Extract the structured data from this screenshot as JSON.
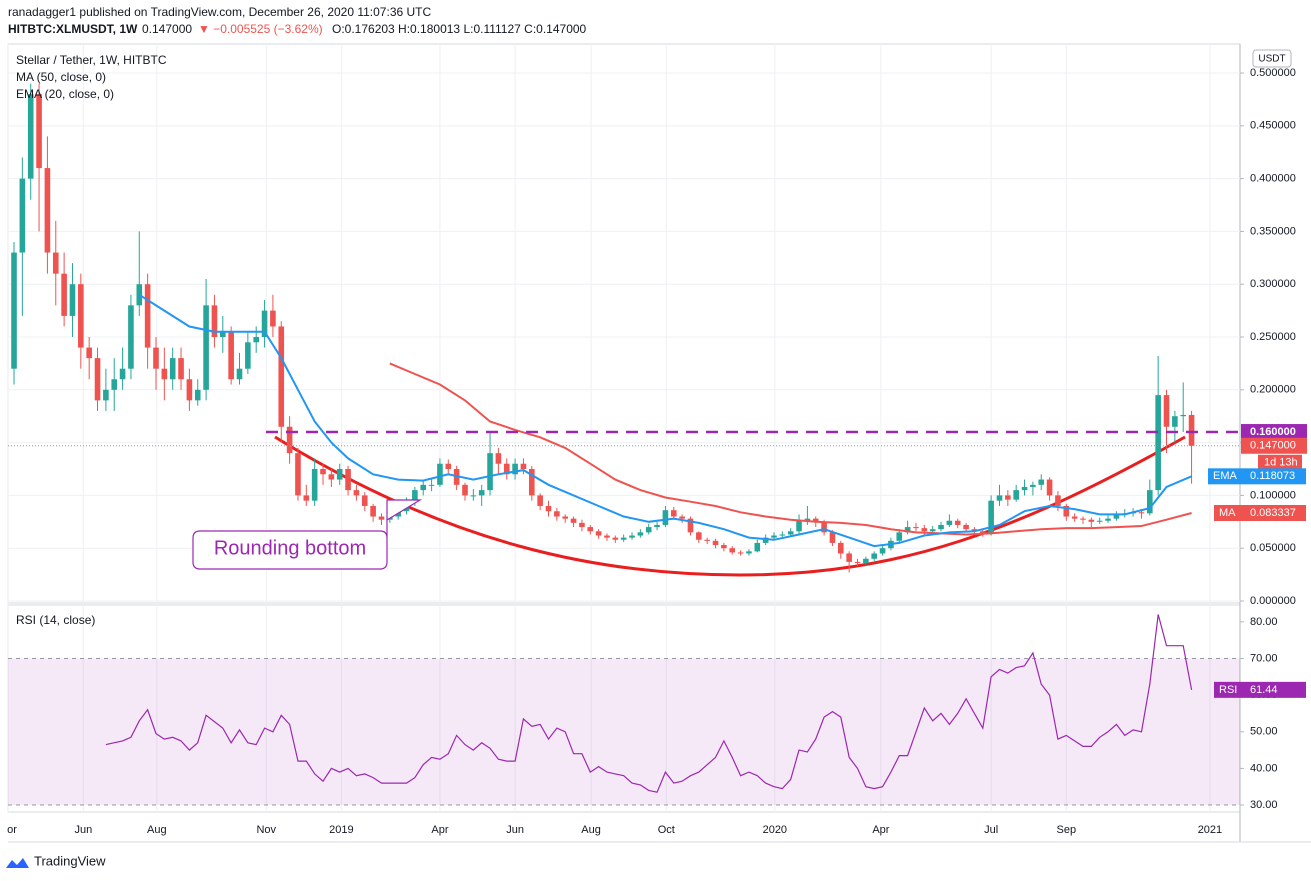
{
  "header": {
    "published": "ranadagger1 published on TradingView.com, December 26, 2020 11:07:36 UTC",
    "symbol": "HITBTC:XLMUSDT, 1W",
    "price": "0.147000",
    "change": "▼ −0.005525 (−3.62%)",
    "ohlc": "O:0.176203 H:0.180013 L:0.111127 C:0.147000"
  },
  "chart_data": {
    "type": "candlestick",
    "title": "Stellar / Tether, 1W, HITBTC",
    "currency": "USDT",
    "up_color": "#26a69a",
    "down_color": "#ef5350",
    "grid": true,
    "xlim": [
      -0.72,
      146.8
    ],
    "xticks": [
      {
        "value": -0.7,
        "label": "or"
      },
      {
        "value": 8.3,
        "label": "Jun"
      },
      {
        "value": 17.1,
        "label": "Aug"
      },
      {
        "value": 30.2,
        "label": "Nov"
      },
      {
        "value": 39.2,
        "label": "2019"
      },
      {
        "value": 51.0,
        "label": "Apr"
      },
      {
        "value": 60.0,
        "label": "Jun"
      },
      {
        "value": 69.1,
        "label": "Aug"
      },
      {
        "value": 78.1,
        "label": "Oct"
      },
      {
        "value": 91.1,
        "label": "2020"
      },
      {
        "value": 103.8,
        "label": "Apr"
      },
      {
        "value": 117.0,
        "label": "Jul"
      },
      {
        "value": 126.0,
        "label": "Sep"
      },
      {
        "value": 143.2,
        "label": "2021"
      }
    ],
    "ylim": [
      -0.0019,
      0.5275
    ],
    "yticks": [
      {
        "value": 0,
        "label": "0.000000"
      },
      {
        "value": 0.05,
        "label": "0.050000"
      },
      {
        "value": 0.1,
        "label": "0.100000"
      },
      {
        "value": 0.15,
        "label": "0.150000"
      },
      {
        "value": 0.2,
        "label": "0.200000"
      },
      {
        "value": 0.25,
        "label": "0.250000"
      },
      {
        "value": 0.3,
        "label": "0.300000"
      },
      {
        "value": 0.35,
        "label": "0.350000"
      },
      {
        "value": 0.4,
        "label": "0.400000"
      },
      {
        "value": 0.45,
        "label": "0.450000"
      },
      {
        "value": 0.5,
        "label": "0.500000"
      }
    ],
    "candles": [
      [
        0.22,
        0.34,
        0.205,
        0.33
      ],
      [
        0.33,
        0.42,
        0.27,
        0.4
      ],
      [
        0.4,
        0.49,
        0.38,
        0.48
      ],
      [
        0.48,
        0.49,
        0.35,
        0.41
      ],
      [
        0.41,
        0.44,
        0.31,
        0.33
      ],
      [
        0.33,
        0.36,
        0.28,
        0.31
      ],
      [
        0.31,
        0.33,
        0.26,
        0.27
      ],
      [
        0.27,
        0.32,
        0.25,
        0.3
      ],
      [
        0.3,
        0.31,
        0.22,
        0.24
      ],
      [
        0.24,
        0.25,
        0.21,
        0.23
      ],
      [
        0.23,
        0.24,
        0.18,
        0.19
      ],
      [
        0.19,
        0.22,
        0.18,
        0.2
      ],
      [
        0.2,
        0.23,
        0.18,
        0.21
      ],
      [
        0.21,
        0.24,
        0.2,
        0.22
      ],
      [
        0.22,
        0.29,
        0.21,
        0.28
      ],
      [
        0.28,
        0.35,
        0.27,
        0.3
      ],
      [
        0.3,
        0.31,
        0.22,
        0.24
      ],
      [
        0.24,
        0.25,
        0.2,
        0.22
      ],
      [
        0.22,
        0.24,
        0.19,
        0.21
      ],
      [
        0.21,
        0.24,
        0.2,
        0.23
      ],
      [
        0.23,
        0.24,
        0.2,
        0.21
      ],
      [
        0.21,
        0.22,
        0.18,
        0.19
      ],
      [
        0.19,
        0.21,
        0.185,
        0.2
      ],
      [
        0.2,
        0.305,
        0.19,
        0.28
      ],
      [
        0.28,
        0.29,
        0.24,
        0.25
      ],
      [
        0.25,
        0.27,
        0.235,
        0.255
      ],
      [
        0.255,
        0.26,
        0.205,
        0.21
      ],
      [
        0.21,
        0.235,
        0.205,
        0.22
      ],
      [
        0.22,
        0.255,
        0.215,
        0.245
      ],
      [
        0.245,
        0.26,
        0.235,
        0.25
      ],
      [
        0.25,
        0.285,
        0.24,
        0.275
      ],
      [
        0.275,
        0.29,
        0.25,
        0.26
      ],
      [
        0.26,
        0.265,
        0.15,
        0.165
      ],
      [
        0.165,
        0.175,
        0.13,
        0.14
      ],
      [
        0.14,
        0.145,
        0.095,
        0.1
      ],
      [
        0.1,
        0.11,
        0.09,
        0.095
      ],
      [
        0.095,
        0.135,
        0.09,
        0.125
      ],
      [
        0.125,
        0.13,
        0.11,
        0.12
      ],
      [
        0.12,
        0.125,
        0.108,
        0.115
      ],
      [
        0.115,
        0.13,
        0.11,
        0.125
      ],
      [
        0.125,
        0.128,
        0.1,
        0.105
      ],
      [
        0.105,
        0.11,
        0.095,
        0.1
      ],
      [
        0.1,
        0.103,
        0.085,
        0.09
      ],
      [
        0.09,
        0.092,
        0.075,
        0.08
      ],
      [
        0.08,
        0.083,
        0.072,
        0.077
      ],
      [
        0.077,
        0.085,
        0.074,
        0.08
      ],
      [
        0.08,
        0.09,
        0.077,
        0.085
      ],
      [
        0.085,
        0.098,
        0.082,
        0.095
      ],
      [
        0.095,
        0.108,
        0.09,
        0.105
      ],
      [
        0.105,
        0.115,
        0.1,
        0.11
      ],
      [
        0.11,
        0.116,
        0.104,
        0.11
      ],
      [
        0.11,
        0.135,
        0.108,
        0.13
      ],
      [
        0.13,
        0.134,
        0.12,
        0.125
      ],
      [
        0.125,
        0.128,
        0.105,
        0.11
      ],
      [
        0.11,
        0.112,
        0.095,
        0.1
      ],
      [
        0.1,
        0.106,
        0.095,
        0.1
      ],
      [
        0.1,
        0.11,
        0.09,
        0.105
      ],
      [
        0.105,
        0.16,
        0.1,
        0.14
      ],
      [
        0.14,
        0.145,
        0.12,
        0.13
      ],
      [
        0.13,
        0.135,
        0.115,
        0.12
      ],
      [
        0.12,
        0.135,
        0.115,
        0.13
      ],
      [
        0.13,
        0.135,
        0.12,
        0.125
      ],
      [
        0.125,
        0.128,
        0.095,
        0.1
      ],
      [
        0.1,
        0.102,
        0.086,
        0.09
      ],
      [
        0.09,
        0.095,
        0.08,
        0.085
      ],
      [
        0.085,
        0.088,
        0.076,
        0.08
      ],
      [
        0.08,
        0.082,
        0.074,
        0.078
      ],
      [
        0.078,
        0.08,
        0.07,
        0.074
      ],
      [
        0.074,
        0.077,
        0.066,
        0.07
      ],
      [
        0.07,
        0.072,
        0.063,
        0.066
      ],
      [
        0.066,
        0.068,
        0.059,
        0.062
      ],
      [
        0.062,
        0.064,
        0.057,
        0.06
      ],
      [
        0.06,
        0.062,
        0.055,
        0.058
      ],
      [
        0.058,
        0.063,
        0.056,
        0.06
      ],
      [
        0.06,
        0.065,
        0.058,
        0.062
      ],
      [
        0.062,
        0.068,
        0.06,
        0.065
      ],
      [
        0.065,
        0.073,
        0.063,
        0.07
      ],
      [
        0.07,
        0.075,
        0.067,
        0.072
      ],
      [
        0.072,
        0.09,
        0.07,
        0.086
      ],
      [
        0.086,
        0.089,
        0.077,
        0.08
      ],
      [
        0.08,
        0.082,
        0.074,
        0.078
      ],
      [
        0.078,
        0.08,
        0.062,
        0.065
      ],
      [
        0.065,
        0.066,
        0.055,
        0.058
      ],
      [
        0.058,
        0.06,
        0.054,
        0.057
      ],
      [
        0.057,
        0.059,
        0.05,
        0.053
      ],
      [
        0.053,
        0.055,
        0.047,
        0.05
      ],
      [
        0.05,
        0.052,
        0.044,
        0.046
      ],
      [
        0.046,
        0.048,
        0.043,
        0.045
      ],
      [
        0.045,
        0.049,
        0.043,
        0.047
      ],
      [
        0.047,
        0.058,
        0.046,
        0.055
      ],
      [
        0.055,
        0.063,
        0.053,
        0.06
      ],
      [
        0.06,
        0.065,
        0.058,
        0.062
      ],
      [
        0.062,
        0.066,
        0.059,
        0.063
      ],
      [
        0.063,
        0.069,
        0.061,
        0.066
      ],
      [
        0.066,
        0.082,
        0.064,
        0.076
      ],
      [
        0.076,
        0.09,
        0.072,
        0.078
      ],
      [
        0.078,
        0.08,
        0.07,
        0.075
      ],
      [
        0.075,
        0.077,
        0.062,
        0.065
      ],
      [
        0.065,
        0.067,
        0.052,
        0.055
      ],
      [
        0.055,
        0.057,
        0.04,
        0.045
      ],
      [
        0.045,
        0.047,
        0.027,
        0.037
      ],
      [
        0.037,
        0.04,
        0.033,
        0.036
      ],
      [
        0.036,
        0.042,
        0.034,
        0.04
      ],
      [
        0.04,
        0.047,
        0.038,
        0.045
      ],
      [
        0.045,
        0.052,
        0.043,
        0.05
      ],
      [
        0.05,
        0.06,
        0.048,
        0.057
      ],
      [
        0.057,
        0.068,
        0.055,
        0.065
      ],
      [
        0.065,
        0.076,
        0.063,
        0.07
      ],
      [
        0.07,
        0.074,
        0.066,
        0.069
      ],
      [
        0.069,
        0.072,
        0.063,
        0.066
      ],
      [
        0.066,
        0.071,
        0.064,
        0.068
      ],
      [
        0.068,
        0.075,
        0.066,
        0.072
      ],
      [
        0.072,
        0.082,
        0.07,
        0.076
      ],
      [
        0.076,
        0.078,
        0.069,
        0.072
      ],
      [
        0.072,
        0.074,
        0.065,
        0.068
      ],
      [
        0.068,
        0.07,
        0.063,
        0.066
      ],
      [
        0.066,
        0.068,
        0.061,
        0.064
      ],
      [
        0.064,
        0.1,
        0.062,
        0.095
      ],
      [
        0.095,
        0.11,
        0.09,
        0.1
      ],
      [
        0.1,
        0.105,
        0.09,
        0.096
      ],
      [
        0.096,
        0.11,
        0.094,
        0.105
      ],
      [
        0.105,
        0.115,
        0.1,
        0.108
      ],
      [
        0.108,
        0.113,
        0.1,
        0.11
      ],
      [
        0.11,
        0.12,
        0.105,
        0.115
      ],
      [
        0.115,
        0.117,
        0.095,
        0.1
      ],
      [
        0.1,
        0.104,
        0.085,
        0.09
      ],
      [
        0.09,
        0.092,
        0.076,
        0.08
      ],
      [
        0.08,
        0.083,
        0.075,
        0.078
      ],
      [
        0.078,
        0.08,
        0.073,
        0.077
      ],
      [
        0.077,
        0.079,
        0.07,
        0.075
      ],
      [
        0.075,
        0.079,
        0.073,
        0.076
      ],
      [
        0.076,
        0.081,
        0.074,
        0.078
      ],
      [
        0.078,
        0.085,
        0.076,
        0.082
      ],
      [
        0.082,
        0.087,
        0.079,
        0.083
      ],
      [
        0.083,
        0.088,
        0.08,
        0.084
      ],
      [
        0.084,
        0.087,
        0.078,
        0.083
      ],
      [
        0.083,
        0.115,
        0.081,
        0.105
      ],
      [
        0.105,
        0.232,
        0.1,
        0.195
      ],
      [
        0.195,
        0.2,
        0.14,
        0.165
      ],
      [
        0.165,
        0.18,
        0.15,
        0.175
      ],
      [
        0.175,
        0.207,
        0.16,
        0.176203
      ],
      [
        0.176203,
        0.180013,
        0.111127,
        0.147
      ]
    ],
    "last_label": "0.147000",
    "countdown": "1d 13h",
    "level": {
      "value": 0.16,
      "label": "0.160000",
      "color": "#9c27b0"
    },
    "ema": {
      "name": "EMA (20, close, 0)",
      "short": "EMA",
      "color": "#2196f3",
      "x": [
        15,
        18,
        21,
        24,
        27,
        30,
        32,
        34,
        36,
        38,
        40,
        43,
        46,
        49,
        52,
        55,
        58,
        61,
        64,
        67,
        70,
        73,
        76,
        79,
        82,
        85,
        88,
        91,
        94,
        97,
        100,
        103,
        106,
        109,
        112,
        115,
        118,
        121,
        124,
        127,
        130,
        133,
        136,
        138,
        141
      ],
      "values": [
        0.29,
        0.275,
        0.26,
        0.255,
        0.255,
        0.255,
        0.23,
        0.2,
        0.17,
        0.15,
        0.135,
        0.12,
        0.115,
        0.114,
        0.12,
        0.115,
        0.12,
        0.124,
        0.11,
        0.1,
        0.09,
        0.08,
        0.075,
        0.078,
        0.074,
        0.068,
        0.06,
        0.058,
        0.063,
        0.068,
        0.06,
        0.052,
        0.055,
        0.062,
        0.065,
        0.066,
        0.072,
        0.085,
        0.09,
        0.087,
        0.082,
        0.082,
        0.088,
        0.108,
        0.118073
      ]
    },
    "ma": {
      "name": "MA (50, close, 0)",
      "short": "MA",
      "color": "#ef5350",
      "x": [
        45,
        48,
        51,
        54,
        57,
        60,
        63,
        66,
        69,
        72,
        75,
        78,
        81,
        84,
        87,
        90,
        93,
        96,
        99,
        102,
        105,
        108,
        111,
        114,
        117,
        120,
        123,
        126,
        129,
        132,
        135,
        138,
        141
      ],
      "values": [
        0.225,
        0.215,
        0.205,
        0.19,
        0.17,
        0.162,
        0.155,
        0.145,
        0.13,
        0.115,
        0.105,
        0.098,
        0.094,
        0.09,
        0.084,
        0.08,
        0.077,
        0.075,
        0.074,
        0.072,
        0.068,
        0.065,
        0.064,
        0.063,
        0.064,
        0.066,
        0.068,
        0.069,
        0.069,
        0.07,
        0.071,
        0.077,
        0.083337
      ]
    },
    "annotation": "Rounding bottom",
    "rsi": {
      "name": "RSI (14, close)",
      "short": "RSI",
      "color": "#9c27b0",
      "band": [
        30,
        70
      ],
      "ylim": [
        28.1,
        84.6
      ],
      "yticks": [
        {
          "value": 30,
          "label": "30.00"
        },
        {
          "value": 40,
          "label": "40.00"
        },
        {
          "value": 50,
          "label": "50.00"
        },
        {
          "value": 60,
          "label": "60.00"
        },
        {
          "value": 70,
          "label": "70.00"
        },
        {
          "value": 80,
          "label": "80.00"
        }
      ],
      "x": [
        11,
        13,
        14,
        15,
        16,
        17,
        18,
        19,
        20,
        21,
        22,
        23,
        25,
        26,
        27,
        28,
        29,
        30,
        31,
        32,
        33,
        34,
        35,
        36,
        37,
        38,
        39,
        40,
        41,
        42,
        43,
        44,
        46,
        47,
        48,
        49,
        50,
        51,
        52,
        53,
        54,
        55,
        56,
        57,
        58,
        59,
        60,
        61,
        62,
        63,
        64,
        65,
        66,
        67,
        68,
        69,
        70,
        71,
        72,
        73,
        74,
        75,
        76,
        77,
        78,
        79,
        80,
        81,
        82,
        83,
        84,
        85,
        86,
        87,
        88,
        89,
        90,
        91,
        92,
        93,
        94,
        95,
        96,
        97,
        98,
        99,
        100,
        101,
        102,
        103,
        104,
        105,
        106,
        107,
        108,
        109,
        110,
        111,
        112,
        113,
        114,
        115,
        116,
        117,
        118,
        119,
        120,
        121,
        122,
        123,
        124,
        125,
        126,
        127,
        128,
        129,
        130,
        131,
        132,
        133,
        134,
        135,
        136,
        137,
        138,
        139,
        140,
        141
      ],
      "values": [
        46.5,
        47.5,
        48.5,
        53,
        56,
        49.5,
        48,
        48.5,
        47.5,
        45,
        47,
        54.5,
        51,
        47,
        50.5,
        47,
        46.5,
        51,
        50,
        54.5,
        52,
        42,
        42,
        38.5,
        36.5,
        40,
        39,
        40,
        38,
        38.5,
        37.5,
        36,
        36,
        36,
        37.5,
        41,
        43,
        42.5,
        44,
        49,
        46.5,
        45,
        47,
        45.5,
        42.5,
        42,
        42,
        53.5,
        51.5,
        52,
        48,
        51,
        50,
        44,
        44,
        39,
        40.5,
        39,
        38.5,
        38,
        36,
        35.5,
        34,
        33.5,
        39,
        36,
        36.5,
        38,
        39,
        41,
        43,
        47.5,
        43,
        38,
        39,
        38,
        36,
        35,
        34.5,
        37,
        45,
        44.5,
        48,
        54,
        55.5,
        54,
        43,
        40,
        35,
        34.5,
        35,
        39,
        43.5,
        43.5,
        50,
        56.5,
        53,
        55,
        52,
        55,
        59,
        55,
        51,
        65,
        67,
        66,
        67.5,
        68,
        71.5,
        63,
        60,
        48,
        49,
        47.5,
        46,
        46,
        48.5,
        50,
        52,
        49,
        50.5,
        50,
        63,
        82,
        73.5,
        73.5,
        73.5,
        61.44
      ]
    }
  },
  "footer": {
    "brand": "TradingView"
  }
}
